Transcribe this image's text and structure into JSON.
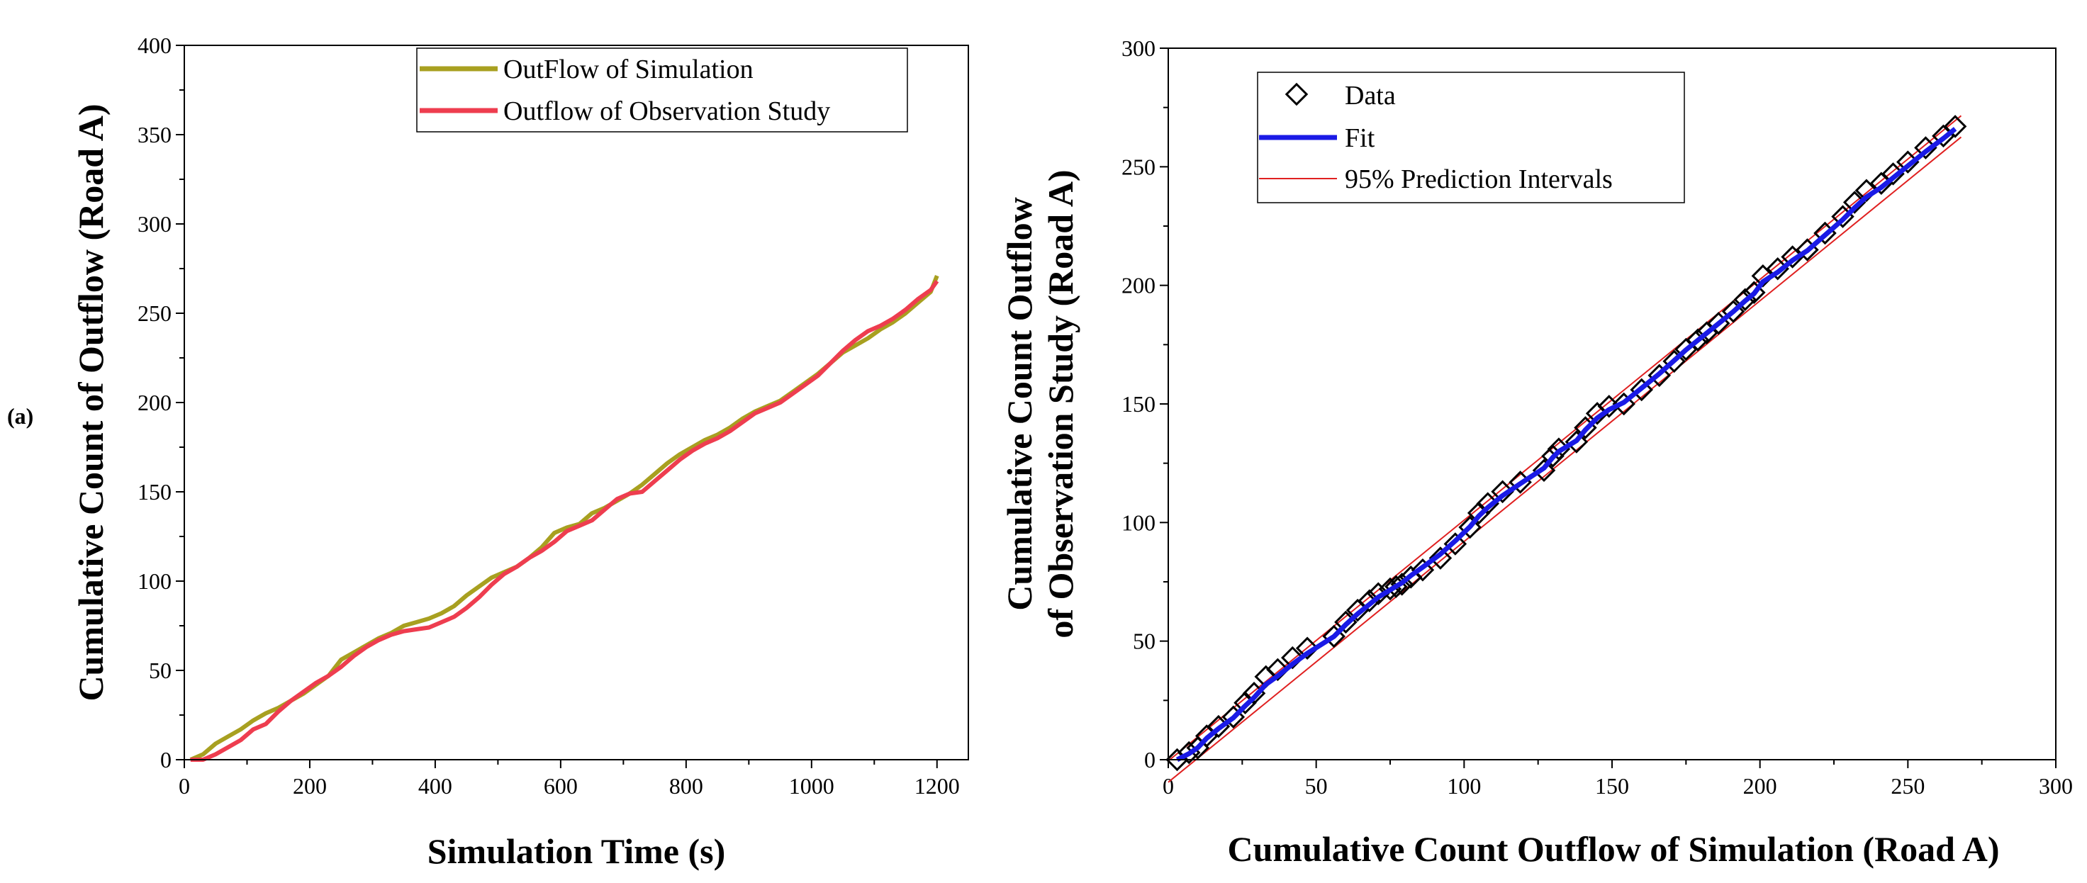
{
  "panel_label": "(a)",
  "colors": {
    "simulation": "#a8a020",
    "observation": "#ee3d4f",
    "fit": "#1a1ae6",
    "pi": "#e02020",
    "data": "#000000"
  },
  "chart_data": [
    {
      "type": "line",
      "title": "",
      "xlabel": "Simulation Time (s)",
      "ylabel": "Cumulative Count of Outflow (Road A)",
      "xlim": [
        0,
        1250
      ],
      "ylim": [
        0,
        400
      ],
      "xticks": [
        0,
        200,
        400,
        600,
        800,
        1000,
        1200
      ],
      "yticks": [
        0,
        50,
        100,
        150,
        200,
        250,
        300,
        350,
        400
      ],
      "legend_position": "top-right",
      "series": [
        {
          "name": "OutFlow of Simulation",
          "x": [
            10,
            30,
            50,
            70,
            90,
            110,
            130,
            150,
            170,
            190,
            210,
            230,
            250,
            270,
            290,
            310,
            330,
            350,
            370,
            390,
            410,
            430,
            450,
            470,
            490,
            510,
            530,
            550,
            570,
            590,
            610,
            630,
            650,
            670,
            690,
            710,
            730,
            750,
            770,
            790,
            810,
            830,
            850,
            870,
            890,
            910,
            930,
            950,
            970,
            990,
            1010,
            1030,
            1050,
            1070,
            1090,
            1110,
            1130,
            1150,
            1170,
            1190,
            1200
          ],
          "y": [
            0,
            3,
            9,
            13,
            17,
            22,
            26,
            29,
            33,
            37,
            42,
            47,
            56,
            60,
            64,
            68,
            71,
            75,
            77,
            79,
            82,
            86,
            92,
            97,
            102,
            105,
            108,
            113,
            119,
            127,
            130,
            132,
            138,
            141,
            145,
            149,
            154,
            160,
            166,
            171,
            175,
            179,
            182,
            186,
            191,
            195,
            198,
            201,
            206,
            211,
            216,
            222,
            228,
            232,
            236,
            241,
            245,
            250,
            256,
            262,
            271
          ]
        },
        {
          "name": "Outflow of Observation Study",
          "x": [
            10,
            30,
            50,
            70,
            90,
            110,
            130,
            150,
            170,
            190,
            210,
            230,
            250,
            270,
            290,
            310,
            330,
            350,
            370,
            390,
            410,
            430,
            450,
            470,
            490,
            510,
            530,
            550,
            570,
            590,
            610,
            630,
            650,
            670,
            690,
            710,
            730,
            750,
            770,
            790,
            810,
            830,
            850,
            870,
            890,
            910,
            930,
            950,
            970,
            990,
            1010,
            1030,
            1050,
            1070,
            1090,
            1110,
            1130,
            1150,
            1170,
            1190,
            1200
          ],
          "y": [
            0,
            0,
            3,
            7,
            11,
            17,
            20,
            27,
            33,
            38,
            43,
            47,
            52,
            58,
            63,
            67,
            70,
            72,
            73,
            74,
            77,
            80,
            85,
            91,
            98,
            104,
            108,
            113,
            117,
            122,
            128,
            131,
            134,
            140,
            146,
            149,
            150,
            156,
            162,
            168,
            173,
            177,
            180,
            184,
            189,
            194,
            197,
            200,
            205,
            210,
            215,
            222,
            229,
            235,
            240,
            243,
            247,
            252,
            258,
            263,
            268
          ]
        }
      ]
    },
    {
      "type": "scatter",
      "title": "",
      "xlabel": "Cumulative Count Outflow of Simulation (Road A)",
      "ylabel_lines": [
        "Cumulative Count Outflow",
        "of Observation Study (Road A)"
      ],
      "xlim": [
        0,
        300
      ],
      "ylim": [
        0,
        300
      ],
      "xticks": [
        0,
        50,
        100,
        150,
        200,
        250,
        300
      ],
      "yticks": [
        0,
        50,
        100,
        150,
        200,
        250,
        300
      ],
      "legend_position": "top-left",
      "legend": [
        "Data",
        "Fit",
        "95% Prediction Intervals"
      ],
      "fit": {
        "slope": 1.015,
        "intercept": -5
      },
      "prediction_interval_halfwidth": 4.5,
      "data": {
        "x": [
          3,
          7,
          10,
          13,
          17,
          22,
          26,
          29,
          33,
          37,
          42,
          47,
          56,
          60,
          64,
          68,
          71,
          75,
          77,
          79,
          82,
          86,
          92,
          97,
          102,
          105,
          108,
          113,
          119,
          127,
          130,
          132,
          138,
          141,
          145,
          149,
          154,
          160,
          166,
          171,
          175,
          179,
          182,
          186,
          191,
          195,
          198,
          201,
          206,
          211,
          216,
          222,
          228,
          232,
          236,
          241,
          245,
          250,
          256,
          262,
          266
        ],
        "y": [
          0,
          3,
          5,
          10,
          14,
          18,
          24,
          28,
          35,
          38,
          43,
          47,
          52,
          58,
          63,
          67,
          70,
          72,
          73,
          74,
          77,
          80,
          85,
          91,
          98,
          104,
          108,
          113,
          117,
          122,
          128,
          131,
          134,
          140,
          146,
          149,
          150,
          156,
          162,
          168,
          173,
          177,
          180,
          184,
          189,
          194,
          197,
          204,
          207,
          212,
          215,
          222,
          229,
          235,
          240,
          243,
          247,
          252,
          258,
          263,
          267
        ]
      }
    }
  ]
}
